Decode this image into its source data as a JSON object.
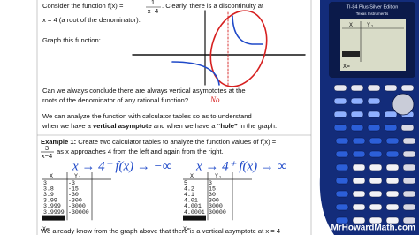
{
  "intro": {
    "line1_a": "Consider the function f(x) = ",
    "frac1_num": "1",
    "frac1_den": "x−4",
    "line1_b": ". Clearly, there is a discontinuity at",
    "line2": "x = 4 (a root of the denominator).",
    "graph_prompt": "Graph this function:"
  },
  "question": {
    "line1": "Can we always conclude there are always vertical asymptotes at the",
    "line2": "roots of the denominator of any rational function?",
    "answer": "No"
  },
  "analysis": {
    "line1": "We can analyze the function with  calculator tables so as to understand",
    "line2_a": "when we have a ",
    "line2_b": "vertical asymptote",
    "line2_c": " and when we have a ",
    "line2_d": "“hole”",
    "line2_e": " in the graph."
  },
  "example": {
    "label": "Example 1:",
    "line1": " Create two calculator tables to analyze the function values of f(x) =",
    "frac_num": "3",
    "frac_den": "x−4",
    "line2": "as x approaches 4 from the left and again from the right."
  },
  "notes": {
    "left": "x → 4⁻  f(x) → −∞",
    "right": "x → 4⁺  f(x) → ∞"
  },
  "tables": [
    {
      "header": [
        "X",
        "Y₁"
      ],
      "rows": [
        [
          "3",
          "-3"
        ],
        [
          "3.8",
          "-15"
        ],
        [
          "3.9",
          "-30"
        ],
        [
          "3.99",
          "-300"
        ],
        [
          "3.999",
          "-3000"
        ],
        [
          "3.9999",
          "-30000"
        ]
      ],
      "footer": "X="
    },
    {
      "header": [
        "X",
        "Y₁"
      ],
      "rows": [
        [
          "5",
          "3"
        ],
        [
          "4.2",
          "15"
        ],
        [
          "4.1",
          "30"
        ],
        [
          "4.01",
          "300"
        ],
        [
          "4.001",
          "3000"
        ],
        [
          "4.0001",
          "30000"
        ]
      ],
      "footer": "X="
    }
  ],
  "bottom": "We already know from the graph above that there is a vertical asymptote at x = 4",
  "calculator": {
    "model": "TI-84 Plus Silver Edition",
    "brand": "Texas Instruments",
    "screen_header": [
      "X",
      "Y₁"
    ],
    "screen_footer": "X="
  },
  "watermark": "MrHowardMath.com"
}
